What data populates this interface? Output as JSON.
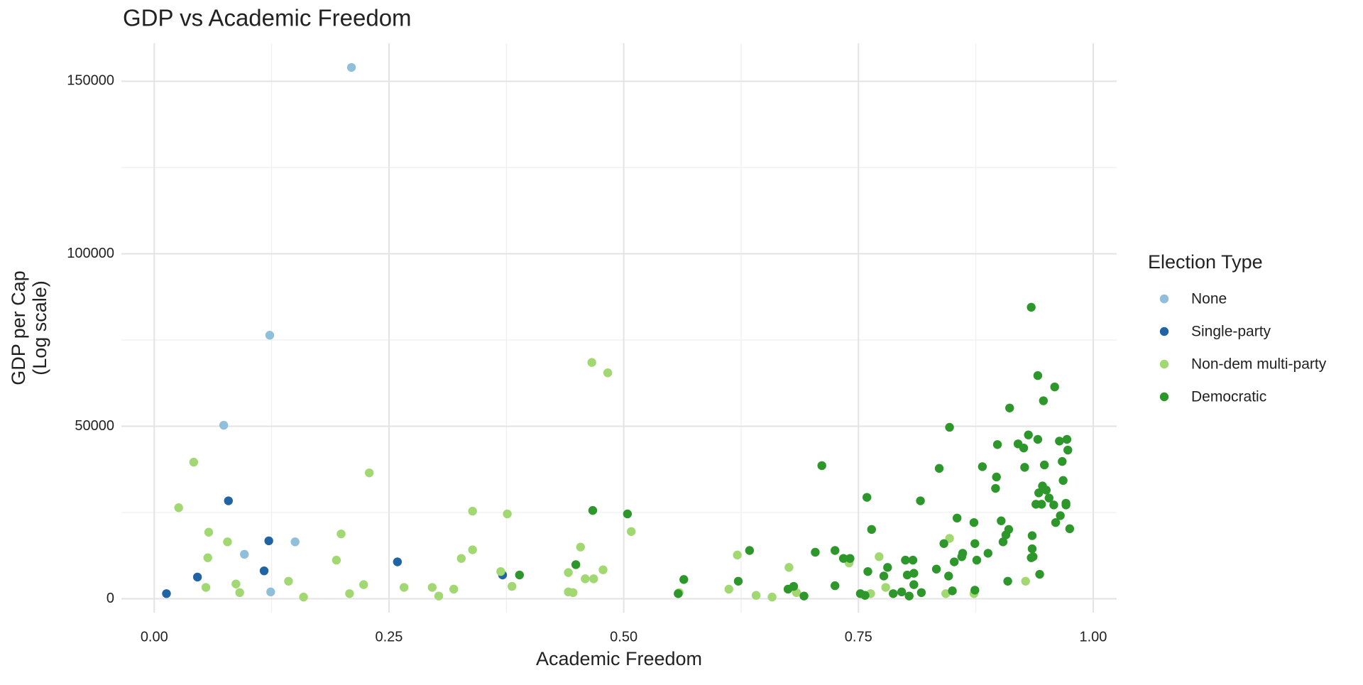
{
  "chart_data": {
    "type": "scatter",
    "title": "GDP vs Academic Freedom",
    "xlabel": "Academic Freedom",
    "ylabel": [
      "GDP per Cap",
      "(Log scale)"
    ],
    "legend_title": "Election Type",
    "legend": "right",
    "grid": true,
    "xlim": [
      -0.035,
      1.025
    ],
    "ylim": [
      -4000,
      161000
    ],
    "xticks": [
      {
        "value": 0,
        "label": "0.00"
      },
      {
        "value": 0.25,
        "label": "0.25"
      },
      {
        "value": 0.5,
        "label": "0.50"
      },
      {
        "value": 0.75,
        "label": "0.75"
      },
      {
        "value": 1,
        "label": "1.00"
      }
    ],
    "yticks": [
      0,
      50000,
      100000,
      150000
    ],
    "series": [
      {
        "name": "None",
        "color": "#8fbfda",
        "x": [
          0.21,
          0.123,
          0.074,
          0.096,
          0.15,
          0.124
        ],
        "values": [
          154000,
          76400,
          50300,
          12900,
          16500,
          2000
        ]
      },
      {
        "name": "Single-party",
        "color": "#2064a4",
        "x": [
          0.013,
          0.046,
          0.079,
          0.122,
          0.117,
          0.259,
          0.371
        ],
        "values": [
          1500,
          6300,
          28400,
          16800,
          8100,
          10700,
          6900
        ]
      },
      {
        "name": "Non-dem multi-party",
        "color": "#a1d872",
        "x": [
          0.026,
          0.042,
          0.058,
          0.057,
          0.055,
          0.078,
          0.087,
          0.091,
          0.143,
          0.159,
          0.194,
          0.199,
          0.208,
          0.223,
          0.229,
          0.266,
          0.296,
          0.303,
          0.319,
          0.327,
          0.339,
          0.339,
          0.369,
          0.376,
          0.381,
          0.441,
          0.446,
          0.441,
          0.454,
          0.459,
          0.468,
          0.466,
          0.483,
          0.478,
          0.508,
          0.559,
          0.612,
          0.621,
          0.641,
          0.658,
          0.676,
          0.684,
          0.74,
          0.763,
          0.772,
          0.779,
          0.843,
          0.847,
          0.873,
          0.928
        ],
        "values": [
          26400,
          39600,
          19300,
          11900,
          3300,
          16500,
          4300,
          1800,
          5100,
          500,
          11200,
          18800,
          1500,
          4100,
          36500,
          3300,
          3300,
          800,
          2800,
          11700,
          25400,
          14200,
          7900,
          24600,
          3600,
          2000,
          1800,
          7600,
          15000,
          5800,
          5800,
          68500,
          65500,
          8400,
          19500,
          1800,
          2800,
          12700,
          1000,
          500,
          9100,
          1800,
          10400,
          1500,
          12200,
          3300,
          1500,
          17500,
          1500,
          5100
        ]
      },
      {
        "name": "Democratic",
        "color": "#2e972b",
        "x": [
          0.449,
          0.467,
          0.504,
          0.389,
          0.558,
          0.564,
          0.622,
          0.634,
          0.675,
          0.681,
          0.692,
          0.704,
          0.711,
          0.725,
          0.725,
          0.734,
          0.741,
          0.752,
          0.757,
          0.759,
          0.76,
          0.764,
          0.777,
          0.781,
          0.787,
          0.796,
          0.8,
          0.802,
          0.804,
          0.808,
          0.809,
          0.809,
          0.816,
          0.817,
          0.833,
          0.836,
          0.841,
          0.846,
          0.847,
          0.85,
          0.852,
          0.855,
          0.86,
          0.861,
          0.873,
          0.874,
          0.876,
          0.874,
          0.882,
          0.888,
          0.896,
          0.897,
          0.898,
          0.902,
          0.904,
          0.907,
          0.909,
          0.91,
          0.911,
          0.92,
          0.926,
          0.927,
          0.931,
          0.934,
          0.935,
          0.935,
          0.934,
          0.936,
          0.939,
          0.941,
          0.941,
          0.942,
          0.943,
          0.945,
          0.946,
          0.947,
          0.948,
          0.95,
          0.953,
          0.958,
          0.959,
          0.96,
          0.964,
          0.965,
          0.967,
          0.968,
          0.971,
          0.972,
          0.973,
          0.971,
          0.975
        ],
        "values": [
          9900,
          25600,
          24600,
          6900,
          1500,
          5600,
          5100,
          14000,
          2800,
          3600,
          800,
          13500,
          38600,
          3800,
          14000,
          11700,
          11700,
          1500,
          1000,
          29400,
          7900,
          20100,
          6600,
          9100,
          1500,
          2000,
          11200,
          6900,
          800,
          11200,
          7400,
          4100,
          28400,
          1800,
          8600,
          37800,
          16000,
          6600,
          49700,
          2300,
          10700,
          23400,
          12200,
          13200,
          22100,
          16000,
          11200,
          2500,
          38300,
          13200,
          32000,
          35300,
          44700,
          22600,
          16500,
          18500,
          5100,
          20100,
          55300,
          44900,
          43700,
          38100,
          47500,
          84500,
          18300,
          14500,
          11900,
          12200,
          27400,
          64700,
          46200,
          30700,
          7100,
          27400,
          32700,
          57400,
          38800,
          31500,
          29200,
          27200,
          61400,
          22100,
          45700,
          24100,
          39800,
          34300,
          27200,
          46200,
          43100,
          27700,
          20300
        ]
      }
    ]
  }
}
